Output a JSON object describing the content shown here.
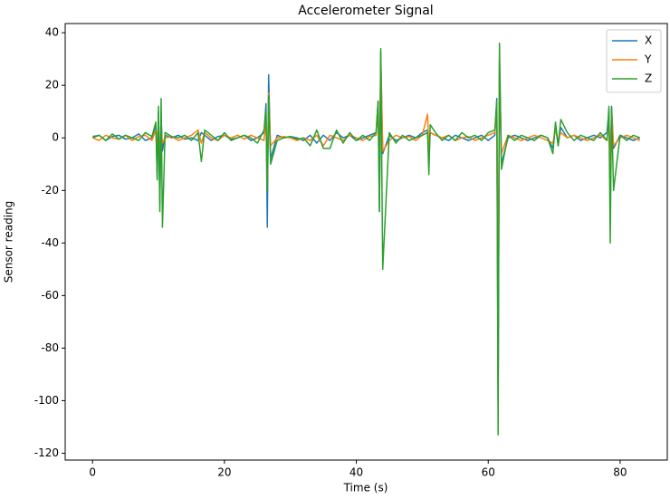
{
  "chart_data": {
    "type": "line",
    "title": "Accelerometer Signal",
    "x_label": "Time (s)",
    "y_label": "Sensor reading",
    "x": [
      0,
      1,
      2,
      3,
      4,
      5,
      6,
      7,
      8,
      9,
      9.6,
      9.8,
      10,
      10.2,
      10.4,
      10.6,
      11,
      12,
      13,
      14,
      15,
      16,
      16.5,
      17,
      18,
      19,
      20,
      21,
      22,
      23,
      24,
      25,
      26,
      26.3,
      26.5,
      26.7,
      27,
      28,
      29,
      30,
      31,
      32,
      33,
      34,
      35,
      36,
      37,
      38,
      39,
      40,
      41,
      42,
      43,
      43.3,
      43.5,
      43.7,
      44,
      45,
      46,
      47,
      48,
      49,
      50,
      50.8,
      51,
      51.2,
      52,
      53,
      54,
      55,
      56,
      57,
      58,
      59,
      60,
      61,
      61.3,
      61.5,
      61.7,
      62,
      63,
      64,
      65,
      66,
      67,
      68,
      69,
      69.8,
      70.2,
      70.6,
      71,
      72,
      73,
      74,
      75,
      76,
      77,
      78,
      78.3,
      78.5,
      78.7,
      79,
      80,
      81,
      82,
      83
    ],
    "series": [
      {
        "name": "X",
        "color": "#1f77b4",
        "values": [
          0,
          1,
          -1,
          0.5,
          1,
          -0.5,
          0,
          1.5,
          -1,
          0,
          5,
          -15,
          10,
          -25,
          8,
          -5,
          1,
          0,
          1,
          -0.5,
          0,
          -1,
          2,
          1,
          -1,
          0.5,
          1,
          -0.5,
          0,
          1,
          -1,
          0,
          2,
          13,
          -34,
          24,
          -8,
          1,
          0,
          0.5,
          0,
          -1,
          1,
          -2,
          1,
          -1,
          2,
          0,
          1,
          -1,
          0,
          1,
          2,
          14,
          -28,
          33,
          -6,
          1,
          -1,
          0,
          1,
          0,
          2,
          3,
          -8,
          2,
          1,
          0,
          -1,
          1,
          0,
          -1,
          0,
          1,
          -1,
          1,
          15,
          -100,
          30,
          -10,
          0,
          1,
          0,
          -1,
          0,
          1,
          0,
          -4,
          5,
          -3,
          4,
          0,
          1,
          -1,
          0,
          1,
          0,
          2,
          10,
          -20,
          12,
          -4,
          1,
          0,
          -1,
          0
        ]
      },
      {
        "name": "Y",
        "color": "#ff7f0e",
        "values": [
          0,
          -1,
          1,
          0,
          -0.5,
          1,
          -1,
          0.5,
          1,
          -1,
          3,
          -5,
          6,
          -8,
          3,
          -2,
          0,
          0.5,
          -1,
          0,
          1,
          3,
          -2,
          2,
          0,
          -1,
          1,
          0,
          1,
          -0.5,
          1,
          0,
          -1,
          8,
          -20,
          17,
          -3,
          0,
          0.5,
          0,
          -1,
          0,
          -1,
          1,
          -3,
          1,
          0,
          -1,
          1,
          0,
          -1,
          0.5,
          1,
          14,
          -20,
          30,
          -5,
          -1,
          1,
          0,
          0.5,
          -1,
          1,
          9,
          -4,
          2,
          1,
          0,
          1,
          -1,
          0,
          0.5,
          -1,
          0,
          1,
          2,
          12,
          -80,
          28,
          -6,
          1,
          0,
          -1,
          0,
          1,
          0,
          -1,
          -2,
          3,
          -1,
          2,
          0,
          1,
          0,
          -1,
          0,
          1,
          -1,
          8,
          -15,
          10,
          -3,
          0,
          1,
          0,
          -1
        ]
      },
      {
        "name": "Z",
        "color": "#2ca02c",
        "values": [
          0.5,
          1,
          -1,
          1.5,
          -0.5,
          1,
          0,
          -1,
          2,
          0.5,
          6,
          -16,
          12,
          -28,
          15,
          -34,
          2,
          0.5,
          0,
          1,
          -1,
          2,
          -9,
          3,
          1,
          -1,
          2,
          -1,
          0,
          1,
          0,
          -2,
          3,
          10,
          -20,
          16,
          -10,
          -1,
          0,
          0.5,
          -0.5,
          0,
          -3,
          3,
          -4,
          -4,
          3,
          -2,
          2,
          -1,
          1,
          -1,
          2,
          14,
          -28,
          34,
          -50,
          2,
          -2,
          1,
          -1,
          0,
          1,
          2,
          -14,
          5,
          2,
          -1,
          1,
          -1,
          2,
          0,
          1,
          -1,
          2,
          3,
          14,
          -113,
          36,
          -12,
          1,
          -1,
          1,
          0,
          -1,
          1,
          0,
          -6,
          6,
          -3,
          7,
          2,
          -1,
          1,
          0,
          -1,
          2,
          -1,
          12,
          -40,
          11,
          -20,
          1,
          -1,
          1,
          0
        ]
      }
    ],
    "xlim": [
      -4.15,
      87.15
    ],
    "ylim": [
      -122.6,
      43.5
    ],
    "xticks": [
      0,
      20,
      40,
      60,
      80
    ],
    "yticks": [
      -120,
      -100,
      -80,
      -60,
      -40,
      -20,
      0,
      20,
      40
    ],
    "legend": "upper right"
  }
}
